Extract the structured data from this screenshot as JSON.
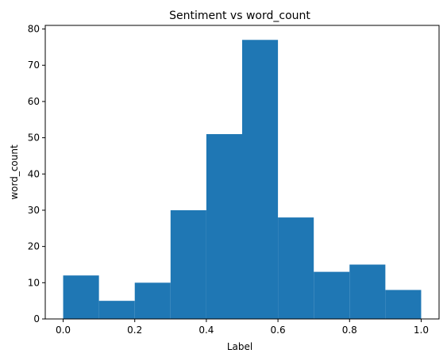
{
  "chart_data": {
    "type": "bar",
    "title": "Sentiment vs word_count",
    "xlabel": "Label",
    "ylabel": "word_count",
    "bins": [
      {
        "x0": 0.0,
        "x1": 0.1,
        "value": 12
      },
      {
        "x0": 0.1,
        "x1": 0.2,
        "value": 5
      },
      {
        "x0": 0.2,
        "x1": 0.3,
        "value": 10
      },
      {
        "x0": 0.3,
        "x1": 0.4,
        "value": 30
      },
      {
        "x0": 0.4,
        "x1": 0.5,
        "value": 51
      },
      {
        "x0": 0.5,
        "x1": 0.6,
        "value": 77
      },
      {
        "x0": 0.6,
        "x1": 0.7,
        "value": 28
      },
      {
        "x0": 0.7,
        "x1": 0.8,
        "value": 13
      },
      {
        "x0": 0.8,
        "x1": 0.9,
        "value": 15
      },
      {
        "x0": 0.9,
        "x1": 1.0,
        "value": 8
      }
    ],
    "xlim": [
      -0.05,
      1.05
    ],
    "ylim": [
      0,
      81
    ],
    "xticks": [
      0.0,
      0.2,
      0.4,
      0.6,
      0.8,
      1.0
    ],
    "xtick_labels": [
      "0.0",
      "0.2",
      "0.4",
      "0.6",
      "0.8",
      "1.0"
    ],
    "yticks": [
      0,
      10,
      20,
      30,
      40,
      50,
      60,
      70,
      80
    ],
    "ytick_labels": [
      "0",
      "10",
      "20",
      "30",
      "40",
      "50",
      "60",
      "70",
      "80"
    ],
    "bar_color": "#1f77b4",
    "grid": false
  }
}
